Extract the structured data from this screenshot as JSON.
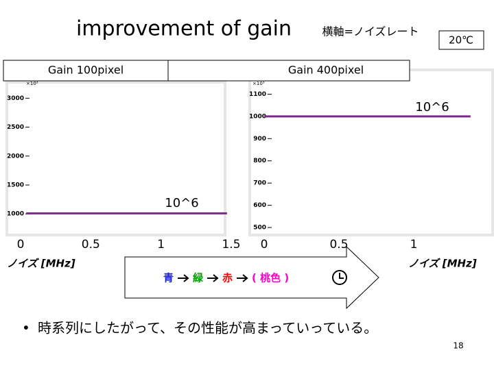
{
  "slide": {
    "title": "improvement of gain",
    "axis_note": "横軸=ノイズレート",
    "temperature": "20℃",
    "steps": [
      {
        "label": "青",
        "color": "#1a1aff"
      },
      {
        "label": "緑",
        "color": "#00a000"
      },
      {
        "label": "赤",
        "color": "#ff0000"
      },
      {
        "label": "( 桃色 )",
        "color": "#ff00cc"
      }
    ],
    "bullet": "時系列にしたがって、その性能が高まっていっている。",
    "page_number": "18"
  },
  "chart_data": [
    {
      "type": "line",
      "title": "Gain 100pixel",
      "x_label": "ノイズ [MHz]",
      "y_multiplier": "×10³",
      "annotation": "10^6",
      "xlim": [
        0,
        1.5
      ],
      "xticks": [
        0,
        0.5,
        1,
        1.5
      ],
      "ylim": [
        730,
        3300
      ],
      "yticks": [
        1000,
        1500,
        2000,
        2500,
        3000
      ],
      "series": [
        {
          "color": "#7b2a8c",
          "x": [
            0.04,
            1.47
          ],
          "values": [
            1010,
            1010
          ]
        }
      ]
    },
    {
      "type": "line",
      "title": "Gain 400pixel",
      "x_label": "ノイズ [MHz]",
      "y_multiplier": "×10³",
      "annotation": "10^6",
      "xlim": [
        0,
        1.5
      ],
      "xticks": [
        0,
        0.5,
        1
      ],
      "ylim": [
        460,
        1160
      ],
      "yticks": [
        500,
        600,
        700,
        800,
        900,
        1000,
        1100
      ],
      "series": [
        {
          "color": "#7b2a8c",
          "x": [
            0,
            1.38
          ],
          "values": [
            1000,
            1000
          ]
        }
      ]
    }
  ]
}
